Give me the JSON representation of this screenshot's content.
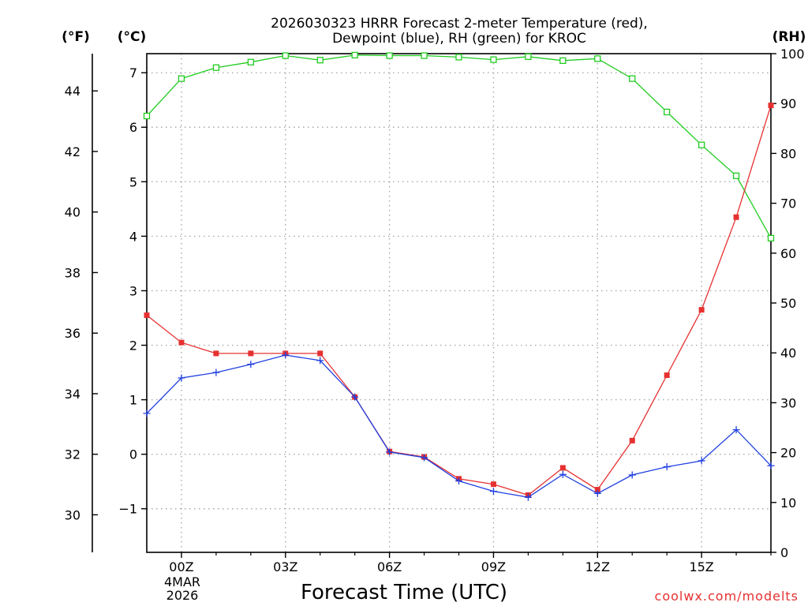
{
  "chart_data": {
    "type": "line",
    "title": [
      "2026030323 HRRR Forecast 2-meter Temperature (red),",
      "Dewpoint (blue), RH (green) for KROC"
    ],
    "xlabel": "Forecast Time (UTC)",
    "x_tick_labels": [
      "00Z",
      "03Z",
      "06Z",
      "09Z",
      "12Z",
      "15Z"
    ],
    "x_date_label": [
      "4MAR",
      "2026"
    ],
    "x_hours": [
      -1,
      0,
      1,
      2,
      3,
      4,
      5,
      6,
      7,
      8,
      9,
      10,
      11,
      12,
      13,
      14,
      15,
      16,
      17
    ],
    "xlim": [
      -1,
      17
    ],
    "left_axis_c": {
      "label": "(°C)",
      "ylim": [
        -1.8,
        7.35
      ],
      "ticks": [
        -1,
        0,
        1,
        2,
        3,
        4,
        5,
        6,
        7
      ],
      "tick_labels": [
        "−1",
        "0",
        "1",
        "2",
        "3",
        "4",
        "5",
        "6",
        "7"
      ]
    },
    "left_axis_f": {
      "label": "(°F)",
      "ticks": [
        30,
        32,
        34,
        36,
        38,
        40,
        42,
        44
      ],
      "tick_labels": [
        "30",
        "32",
        "34",
        "36",
        "38",
        "40",
        "42",
        "44"
      ]
    },
    "right_axis_rh": {
      "label": "(RH)",
      "ylim": [
        0,
        100
      ],
      "ticks": [
        0,
        10,
        20,
        30,
        40,
        50,
        60,
        70,
        80,
        90,
        100
      ],
      "tick_labels": [
        "0",
        "10",
        "20",
        "30",
        "40",
        "50",
        "60",
        "70",
        "80",
        "90",
        "100"
      ]
    },
    "series": [
      {
        "name": "2-meter Temperature",
        "axis": "C",
        "color": "#e63030",
        "marker": "filled-square",
        "values": [
          2.55,
          2.05,
          1.85,
          1.85,
          1.85,
          1.85,
          1.05,
          0.05,
          -0.05,
          -0.45,
          -0.55,
          -0.75,
          -0.25,
          -0.65,
          0.25,
          1.45,
          2.65,
          4.35,
          6.4
        ]
      },
      {
        "name": "Dewpoint",
        "axis": "C",
        "color": "#2040e0",
        "marker": "plus",
        "values": [
          0.75,
          1.4,
          1.5,
          1.65,
          1.82,
          1.72,
          1.05,
          0.04,
          -0.06,
          -0.49,
          -0.68,
          -0.79,
          -0.37,
          -0.72,
          -0.38,
          -0.23,
          -0.12,
          0.45,
          -0.21
        ]
      },
      {
        "name": "RH",
        "axis": "RH",
        "color": "#20cc20",
        "marker": "open-square",
        "values": [
          87.5,
          95,
          97.2,
          98.3,
          99.6,
          98.7,
          99.7,
          99.6,
          99.6,
          99.3,
          98.8,
          99.4,
          98.6,
          99,
          95,
          88.3,
          81.7,
          75.5,
          63
        ]
      }
    ],
    "grid": true,
    "credit": "coolwx.com/modelts"
  }
}
